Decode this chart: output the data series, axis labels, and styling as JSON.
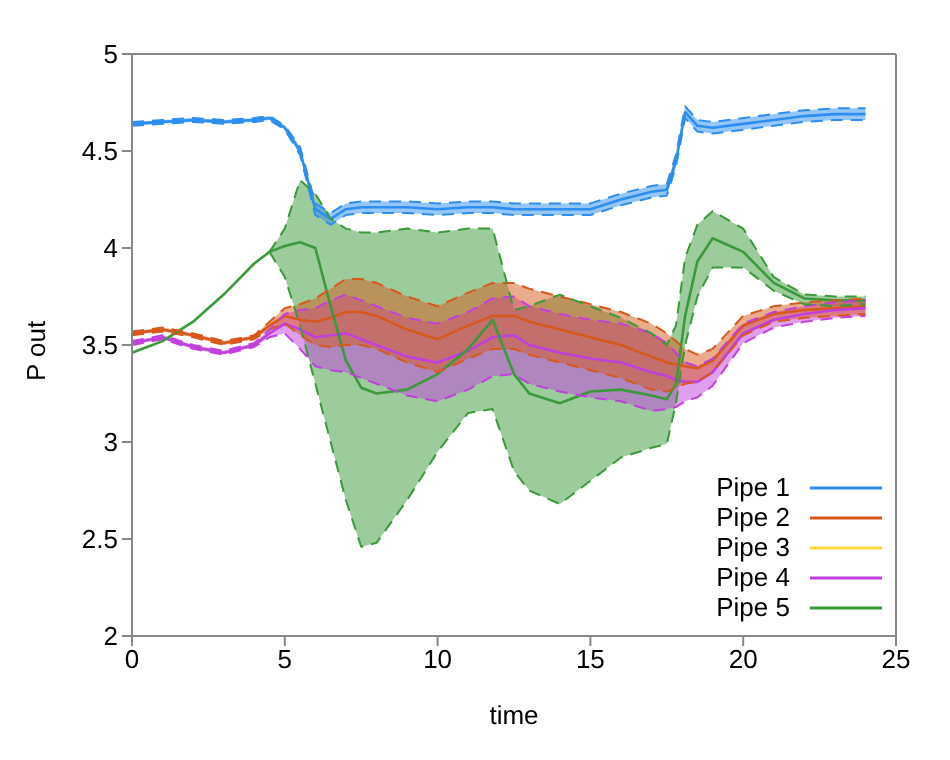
{
  "chart_data": {
    "type": "line",
    "xlabel": "time",
    "ylabel": "P out",
    "x": [
      0,
      1,
      2,
      3,
      4,
      4.5,
      5,
      5.5,
      6,
      6.5,
      7,
      7.5,
      8,
      9,
      10,
      11,
      11.8,
      12.5,
      13,
      14,
      15,
      16,
      17,
      17.5,
      17.8,
      18.1,
      18.5,
      19,
      20,
      21,
      22,
      23,
      24
    ],
    "xlim": [
      0,
      25
    ],
    "xticks": [
      0,
      5,
      10,
      15,
      20,
      25
    ],
    "ylim": [
      2,
      5
    ],
    "yticks": [
      2,
      2.5,
      3,
      3.5,
      4,
      4.5,
      5
    ],
    "grid": false,
    "legend": "bottom right",
    "series": [
      {
        "name": "Pipe 1",
        "color": "#2b8ef0",
        "values": [
          4.64,
          4.65,
          4.66,
          4.65,
          4.66,
          4.67,
          4.62,
          4.5,
          4.2,
          4.15,
          4.2,
          4.21,
          4.21,
          4.21,
          4.2,
          4.21,
          4.21,
          4.2,
          4.2,
          4.2,
          4.2,
          4.25,
          4.29,
          4.3,
          4.45,
          4.7,
          4.63,
          4.62,
          4.64,
          4.66,
          4.68,
          4.69,
          4.69
        ],
        "lower": [
          4.63,
          4.64,
          4.65,
          4.64,
          4.65,
          4.66,
          4.61,
          4.48,
          4.17,
          4.12,
          4.17,
          4.18,
          4.18,
          4.18,
          4.17,
          4.18,
          4.18,
          4.17,
          4.17,
          4.17,
          4.17,
          4.22,
          4.26,
          4.27,
          4.42,
          4.67,
          4.6,
          4.59,
          4.61,
          4.63,
          4.65,
          4.66,
          4.66
        ],
        "upper": [
          4.65,
          4.66,
          4.67,
          4.66,
          4.67,
          4.68,
          4.63,
          4.52,
          4.23,
          4.18,
          4.23,
          4.24,
          4.24,
          4.24,
          4.23,
          4.24,
          4.24,
          4.23,
          4.23,
          4.23,
          4.23,
          4.28,
          4.32,
          4.33,
          4.48,
          4.73,
          4.66,
          4.65,
          4.67,
          4.69,
          4.71,
          4.72,
          4.72
        ]
      },
      {
        "name": "Pipe 2",
        "color": "#d8581c",
        "values": [
          3.56,
          3.58,
          3.55,
          3.51,
          3.54,
          3.6,
          3.65,
          3.63,
          3.62,
          3.64,
          3.67,
          3.67,
          3.65,
          3.58,
          3.53,
          3.6,
          3.65,
          3.65,
          3.62,
          3.58,
          3.54,
          3.5,
          3.44,
          3.41,
          3.4,
          3.39,
          3.38,
          3.42,
          3.6,
          3.66,
          3.68,
          3.69,
          3.7
        ],
        "lower": [
          3.55,
          3.57,
          3.54,
          3.5,
          3.53,
          3.58,
          3.61,
          3.55,
          3.5,
          3.49,
          3.5,
          3.5,
          3.48,
          3.41,
          3.36,
          3.43,
          3.48,
          3.48,
          3.45,
          3.41,
          3.37,
          3.33,
          3.27,
          3.26,
          3.28,
          3.3,
          3.31,
          3.36,
          3.55,
          3.62,
          3.64,
          3.65,
          3.66
        ],
        "upper": [
          3.57,
          3.59,
          3.56,
          3.52,
          3.55,
          3.62,
          3.69,
          3.71,
          3.74,
          3.79,
          3.84,
          3.84,
          3.82,
          3.75,
          3.7,
          3.77,
          3.82,
          3.82,
          3.79,
          3.75,
          3.71,
          3.67,
          3.61,
          3.56,
          3.52,
          3.48,
          3.45,
          3.48,
          3.65,
          3.7,
          3.72,
          3.73,
          3.74
        ]
      },
      {
        "name": "Pipe 3",
        "color": "#ffd83a",
        "values": [
          null,
          null,
          null,
          null,
          null,
          null,
          null,
          null,
          null,
          null,
          null,
          null,
          null,
          null,
          null,
          null,
          null,
          null,
          null,
          null,
          null,
          null,
          null,
          null,
          null,
          null,
          null,
          null,
          null,
          null,
          null,
          null,
          null
        ]
      },
      {
        "name": "Pipe 4",
        "color": "#c13fdd",
        "values": [
          3.51,
          3.54,
          3.49,
          3.46,
          3.5,
          3.56,
          3.61,
          3.58,
          3.54,
          3.55,
          3.56,
          3.53,
          3.5,
          3.44,
          3.41,
          3.47,
          3.54,
          3.55,
          3.5,
          3.46,
          3.43,
          3.41,
          3.36,
          3.34,
          3.32,
          3.31,
          3.31,
          3.36,
          3.56,
          3.63,
          3.66,
          3.68,
          3.69
        ],
        "lower": [
          3.5,
          3.53,
          3.48,
          3.45,
          3.49,
          3.54,
          3.56,
          3.48,
          3.39,
          3.37,
          3.36,
          3.33,
          3.3,
          3.24,
          3.21,
          3.27,
          3.34,
          3.35,
          3.3,
          3.26,
          3.23,
          3.21,
          3.16,
          3.17,
          3.18,
          3.21,
          3.23,
          3.29,
          3.51,
          3.59,
          3.62,
          3.64,
          3.65
        ],
        "upper": [
          3.52,
          3.55,
          3.5,
          3.47,
          3.51,
          3.58,
          3.66,
          3.68,
          3.69,
          3.73,
          3.76,
          3.73,
          3.7,
          3.64,
          3.61,
          3.67,
          3.74,
          3.75,
          3.7,
          3.66,
          3.63,
          3.61,
          3.56,
          3.51,
          3.46,
          3.41,
          3.39,
          3.43,
          3.61,
          3.67,
          3.7,
          3.72,
          3.73
        ]
      },
      {
        "name": "Pipe 5",
        "color": "#3a9a3a",
        "values": [
          3.46,
          3.52,
          3.62,
          3.76,
          3.92,
          3.98,
          4.01,
          4.03,
          4.0,
          3.7,
          3.42,
          3.28,
          3.25,
          3.27,
          3.35,
          3.48,
          3.63,
          3.35,
          3.25,
          3.2,
          3.26,
          3.27,
          3.24,
          3.22,
          3.3,
          3.65,
          3.93,
          4.05,
          3.98,
          3.82,
          3.74,
          3.73,
          3.73
        ],
        "lower": [
          null,
          null,
          null,
          null,
          null,
          3.98,
          3.85,
          3.6,
          3.3,
          3.0,
          2.7,
          2.46,
          2.48,
          2.7,
          2.95,
          3.15,
          3.17,
          2.85,
          2.75,
          2.68,
          2.8,
          2.92,
          2.97,
          2.99,
          3.2,
          3.5,
          3.75,
          3.9,
          3.9,
          3.78,
          3.71,
          3.7,
          3.71
        ],
        "upper": [
          null,
          null,
          null,
          null,
          null,
          3.98,
          4.1,
          4.35,
          4.28,
          4.15,
          4.1,
          4.08,
          4.08,
          4.1,
          4.08,
          4.1,
          4.1,
          3.68,
          3.7,
          3.76,
          3.7,
          3.64,
          3.56,
          3.5,
          3.6,
          3.95,
          4.12,
          4.19,
          4.1,
          3.85,
          3.76,
          3.75,
          3.75
        ]
      },
      {
        "color": "#2b8ef0",
        "line_style": "dashed",
        "values": [
          4.63,
          4.64,
          4.65,
          4.64,
          4.65,
          4.66,
          4.61,
          4.48,
          4.17,
          4.12,
          4.17,
          4.18,
          4.18,
          4.18,
          4.17,
          4.18,
          4.18,
          4.17,
          4.17,
          4.17,
          4.17,
          4.22,
          4.26,
          4.27,
          4.42,
          4.67,
          4.6,
          4.59,
          4.61,
          4.63,
          4.65,
          4.66,
          4.66
        ]
      },
      {
        "color": "#2b8ef0",
        "line_style": "dashed",
        "values": [
          4.65,
          4.66,
          4.67,
          4.66,
          4.67,
          4.68,
          4.63,
          4.52,
          4.23,
          4.18,
          4.23,
          4.24,
          4.24,
          4.24,
          4.23,
          4.24,
          4.24,
          4.23,
          4.23,
          4.23,
          4.23,
          4.28,
          4.32,
          4.33,
          4.48,
          4.73,
          4.66,
          4.65,
          4.67,
          4.69,
          4.71,
          4.72,
          4.72
        ]
      },
      {
        "color": "#d8581c",
        "line_style": "dashed",
        "values": [
          3.55,
          3.57,
          3.54,
          3.5,
          3.53,
          3.58,
          3.61,
          3.55,
          3.5,
          3.49,
          3.5,
          3.5,
          3.48,
          3.41,
          3.36,
          3.43,
          3.48,
          3.48,
          3.45,
          3.41,
          3.37,
          3.33,
          3.27,
          3.26,
          3.28,
          3.3,
          3.31,
          3.36,
          3.55,
          3.62,
          3.64,
          3.65,
          3.66
        ]
      },
      {
        "color": "#d8581c",
        "line_style": "dashed",
        "values": [
          3.57,
          3.59,
          3.56,
          3.52,
          3.55,
          3.62,
          3.69,
          3.71,
          3.74,
          3.79,
          3.84,
          3.84,
          3.82,
          3.75,
          3.7,
          3.77,
          3.82,
          3.82,
          3.79,
          3.75,
          3.71,
          3.67,
          3.61,
          3.56,
          3.52,
          3.48,
          3.45,
          3.48,
          3.65,
          3.7,
          3.72,
          3.73,
          3.74
        ]
      },
      {
        "color": "#c13fdd",
        "line_style": "dashed",
        "values": [
          3.5,
          3.53,
          3.48,
          3.45,
          3.49,
          3.54,
          3.56,
          3.48,
          3.39,
          3.37,
          3.36,
          3.33,
          3.3,
          3.24,
          3.21,
          3.27,
          3.34,
          3.35,
          3.3,
          3.26,
          3.23,
          3.21,
          3.16,
          3.17,
          3.18,
          3.21,
          3.23,
          3.29,
          3.51,
          3.59,
          3.62,
          3.64,
          3.65
        ]
      },
      {
        "color": "#c13fdd",
        "line_style": "dashed",
        "values": [
          3.52,
          3.55,
          3.5,
          3.47,
          3.51,
          3.58,
          3.66,
          3.68,
          3.69,
          3.73,
          3.76,
          3.73,
          3.7,
          3.64,
          3.61,
          3.67,
          3.74,
          3.75,
          3.7,
          3.66,
          3.63,
          3.61,
          3.56,
          3.51,
          3.46,
          3.41,
          3.39,
          3.43,
          3.61,
          3.67,
          3.7,
          3.72,
          3.73
        ]
      },
      {
        "color": "#3a9a3a",
        "line_style": "dashed",
        "values": [
          null,
          null,
          null,
          null,
          null,
          3.98,
          3.85,
          3.6,
          3.3,
          3.0,
          2.7,
          2.46,
          2.48,
          2.7,
          2.95,
          3.15,
          3.17,
          2.85,
          2.75,
          2.68,
          2.8,
          2.92,
          2.97,
          2.99,
          3.2,
          3.5,
          3.75,
          3.9,
          3.9,
          3.78,
          3.71,
          3.7,
          3.71
        ]
      },
      {
        "color": "#3a9a3a",
        "line_style": "dashed",
        "values": [
          null,
          null,
          null,
          null,
          null,
          3.98,
          4.1,
          4.35,
          4.28,
          4.15,
          4.1,
          4.08,
          4.08,
          4.1,
          4.08,
          4.1,
          4.1,
          3.68,
          3.7,
          3.76,
          3.7,
          3.64,
          3.56,
          3.5,
          3.6,
          3.95,
          4.12,
          4.19,
          4.1,
          3.85,
          3.76,
          3.75,
          3.75
        ]
      }
    ]
  }
}
